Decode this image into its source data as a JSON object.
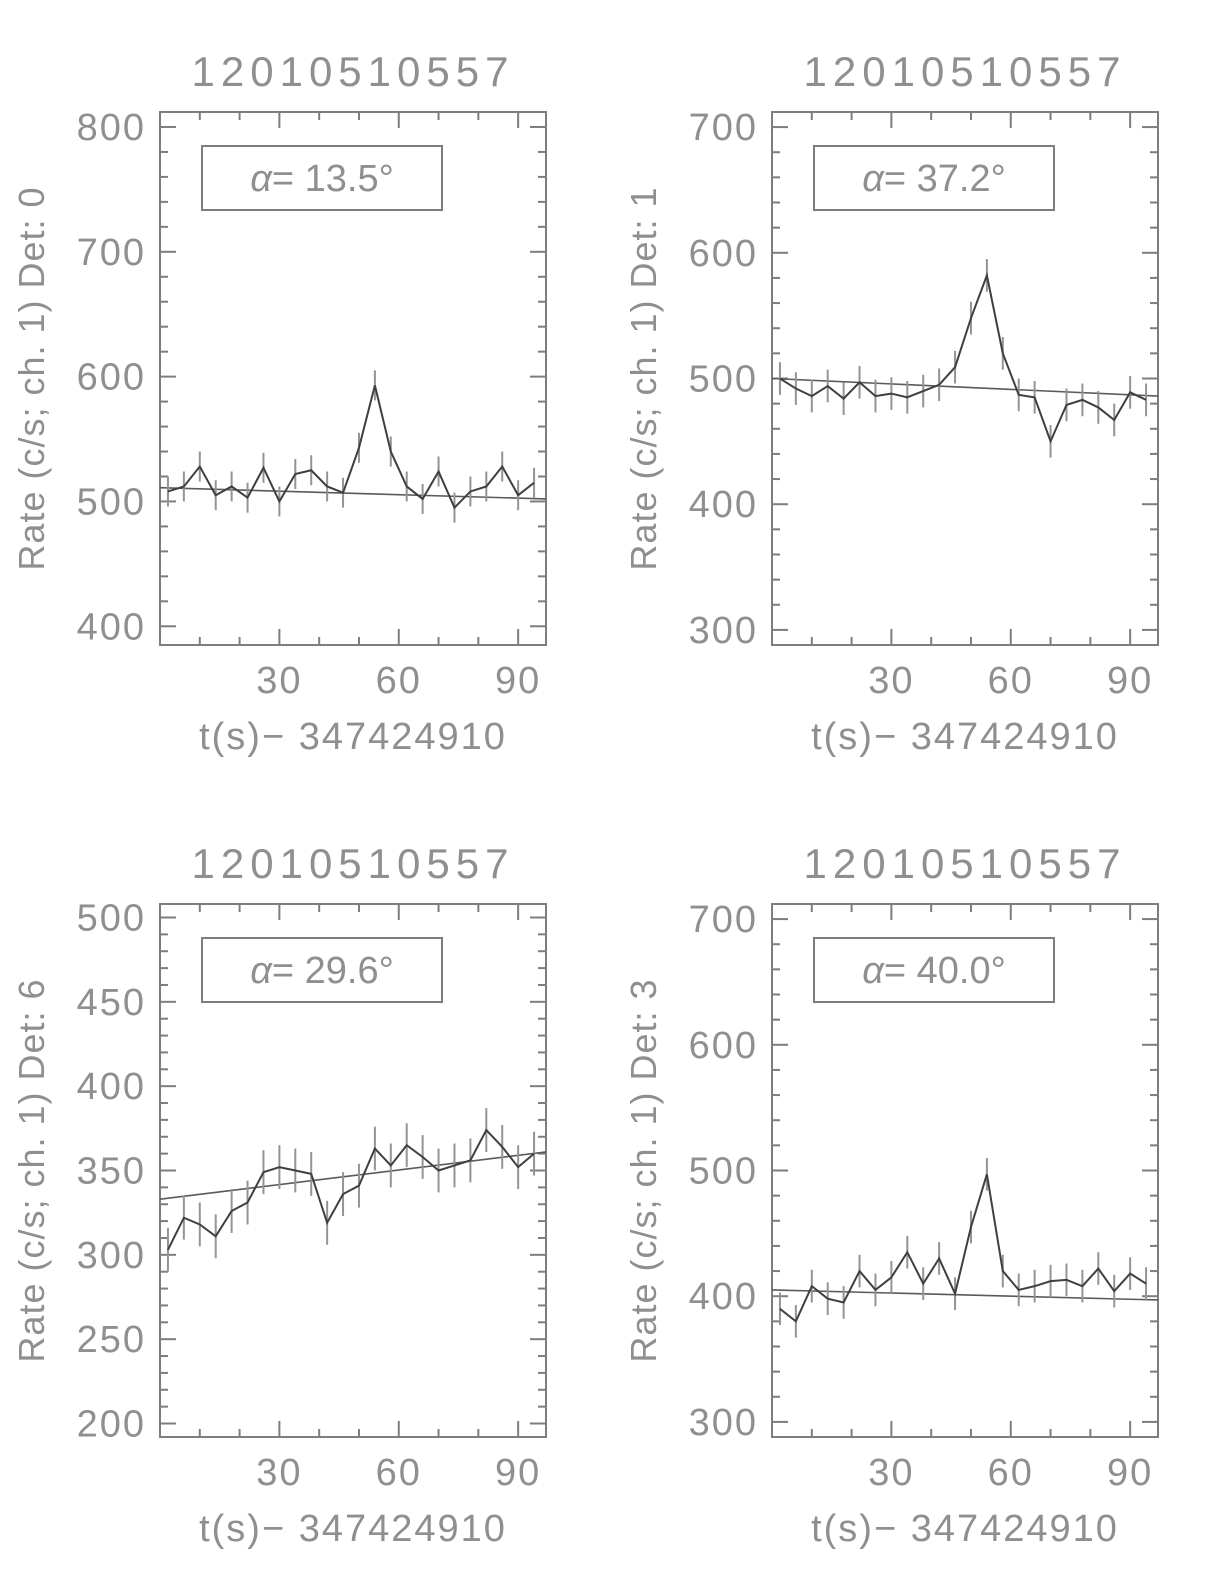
{
  "colors": {
    "frame": "#7d7d7d",
    "text": "#8f8f8f",
    "data": "#3f3f3f",
    "error": "#949494",
    "trend": "#5a5a5a",
    "background": "#ffffff"
  },
  "chart_data": [
    {
      "type": "line",
      "title": "12010510557",
      "ylabel": "Rate (c/s; ch. 1) Det: 0",
      "xlabel": "t(s)−  347424910",
      "alpha": {
        "symbol": "α",
        "rest": "=  13.5°"
      },
      "xlim": [
        0,
        97
      ],
      "ylim": [
        385,
        812
      ],
      "xticks": [
        30,
        60,
        90
      ],
      "yticks": [
        400,
        500,
        600,
        700,
        800
      ],
      "xminor": 10,
      "yminor": 20,
      "x": [
        2,
        6,
        10,
        14,
        18,
        22,
        26,
        30,
        34,
        38,
        42,
        46,
        50,
        54,
        58,
        62,
        66,
        70,
        74,
        78,
        82,
        86,
        90,
        94
      ],
      "y": [
        508,
        512,
        528,
        505,
        512,
        503,
        527,
        500,
        522,
        525,
        512,
        507,
        543,
        593,
        540,
        512,
        502,
        524,
        495,
        508,
        512,
        528,
        505,
        515
      ],
      "yerr": 12,
      "trend": {
        "x": [
          0,
          97
        ],
        "y": [
          511,
          502
        ]
      }
    },
    {
      "type": "line",
      "title": "12010510557",
      "ylabel": "Rate (c/s; ch. 1) Det: 1",
      "xlabel": "t(s)−  347424910",
      "alpha": {
        "symbol": "α",
        "rest": "=  37.2°"
      },
      "xlim": [
        0,
        97
      ],
      "ylim": [
        288,
        712
      ],
      "xticks": [
        30,
        60,
        90
      ],
      "yticks": [
        300,
        400,
        500,
        600,
        700
      ],
      "xminor": 10,
      "yminor": 20,
      "x": [
        2,
        6,
        10,
        14,
        18,
        22,
        26,
        30,
        34,
        38,
        42,
        46,
        50,
        54,
        58,
        62,
        66,
        70,
        74,
        78,
        82,
        86,
        90,
        94
      ],
      "y": [
        500,
        492,
        486,
        494,
        484,
        497,
        486,
        488,
        485,
        490,
        495,
        509,
        548,
        582,
        520,
        487,
        485,
        450,
        479,
        483,
        477,
        467,
        489,
        483
      ],
      "yerr": 13,
      "trend": {
        "x": [
          0,
          97
        ],
        "y": [
          500,
          486
        ]
      }
    },
    {
      "type": "line",
      "title": "12010510557",
      "ylabel": "Rate (c/s; ch. 1) Det: 6",
      "xlabel": "t(s)−  347424910",
      "alpha": {
        "symbol": "α",
        "rest": "=  29.6°"
      },
      "xlim": [
        0,
        97
      ],
      "ylim": [
        192,
        508
      ],
      "xticks": [
        30,
        60,
        90
      ],
      "yticks": [
        200,
        250,
        300,
        350,
        400,
        450,
        500
      ],
      "xminor": 10,
      "yminor": 10,
      "x": [
        2,
        6,
        10,
        14,
        18,
        22,
        26,
        30,
        34,
        38,
        42,
        46,
        50,
        54,
        58,
        62,
        66,
        70,
        74,
        78,
        82,
        86,
        90,
        94
      ],
      "y": [
        303,
        322,
        318,
        311,
        326,
        331,
        349,
        352,
        350,
        348,
        319,
        336,
        341,
        363,
        353,
        365,
        358,
        350,
        353,
        356,
        374,
        364,
        352,
        360
      ],
      "yerr": 13,
      "trend": {
        "x": [
          0,
          97
        ],
        "y": [
          333,
          361
        ]
      }
    },
    {
      "type": "line",
      "title": "12010510557",
      "ylabel": "Rate (c/s; ch. 1) Det: 3",
      "xlabel": "t(s)−  347424910",
      "alpha": {
        "symbol": "α",
        "rest": "=  40.0°"
      },
      "xlim": [
        0,
        97
      ],
      "ylim": [
        288,
        712
      ],
      "xticks": [
        30,
        60,
        90
      ],
      "yticks": [
        300,
        400,
        500,
        600,
        700
      ],
      "xminor": 10,
      "yminor": 20,
      "x": [
        2,
        6,
        10,
        14,
        18,
        22,
        26,
        30,
        34,
        38,
        42,
        46,
        50,
        54,
        58,
        62,
        66,
        70,
        74,
        78,
        82,
        86,
        90,
        94
      ],
      "y": [
        390,
        380,
        408,
        398,
        395,
        420,
        405,
        415,
        435,
        410,
        430,
        402,
        455,
        497,
        420,
        405,
        408,
        412,
        413,
        408,
        422,
        404,
        418,
        410
      ],
      "yerr": 13,
      "trend": {
        "x": [
          0,
          97
        ],
        "y": [
          405,
          397
        ]
      }
    }
  ]
}
